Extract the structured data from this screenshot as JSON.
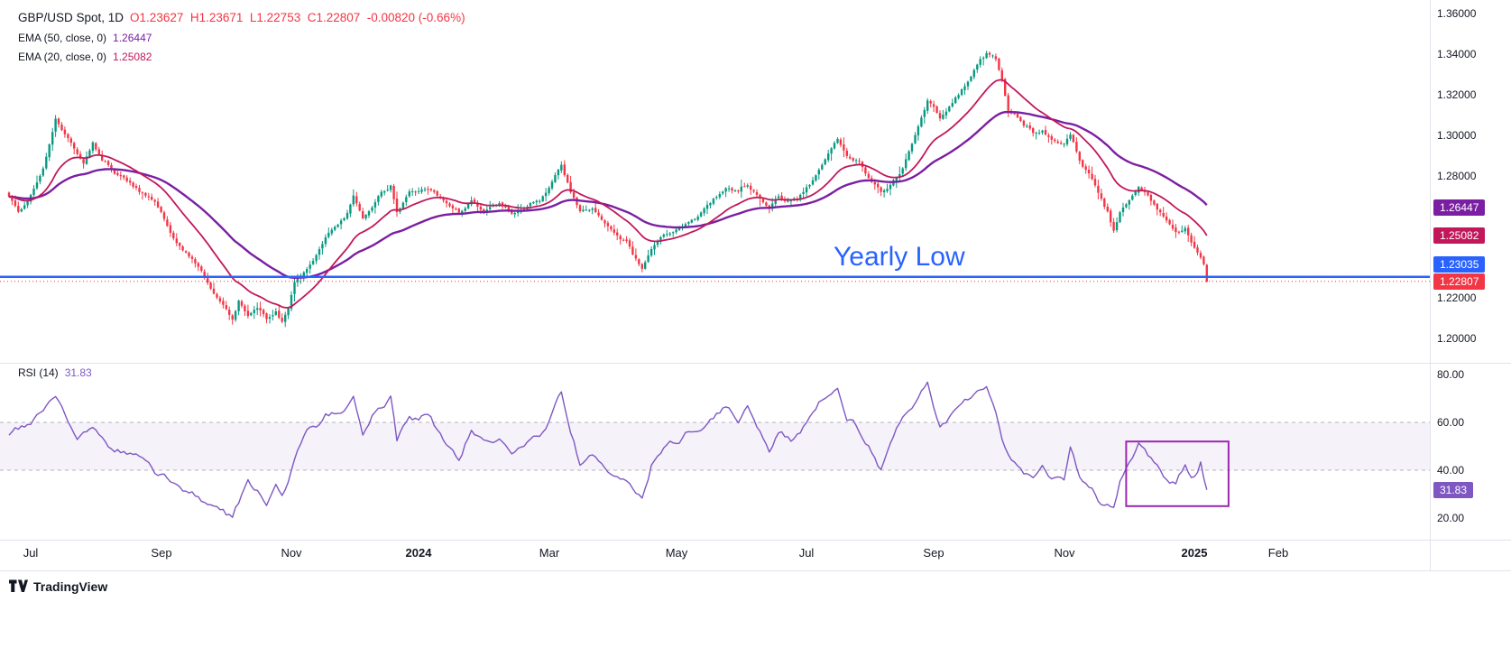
{
  "legend": {
    "symbol": "GBP/USD Spot, 1D",
    "ohlc": "O1.23627  H1.23671  L1.22753  C1.22807  -0.00820 (-0.66%)",
    "ohlc_color": "#f23645",
    "ema50_label": "EMA (50, close, 0)",
    "ema50_value": "1.26447",
    "ema20_label": "EMA (20, close, 0)",
    "ema20_value": "1.25082",
    "rsi_label": "RSI (14)",
    "rsi_value": "31.83"
  },
  "price_axis": {
    "labels": [
      {
        "label": "1.36000",
        "value": 1.36
      },
      {
        "label": "1.34000",
        "value": 1.34
      },
      {
        "label": "1.32000",
        "value": 1.32
      },
      {
        "label": "1.30000",
        "value": 1.3
      },
      {
        "label": "1.28000",
        "value": 1.28
      },
      {
        "label": "1.26000",
        "value": 1.26
      },
      {
        "label": "1.24000",
        "value": 1.24
      },
      {
        "label": "1.22000",
        "value": 1.22
      },
      {
        "label": "1.20000",
        "value": 1.2
      }
    ],
    "badges": [
      {
        "text": "1.26447",
        "bg": "#7b1fa2",
        "price": 1.26447
      },
      {
        "text": "1.25082",
        "bg": "#c2185b",
        "price": 1.25082
      },
      {
        "text": "1.23035",
        "bg": "#2962ff",
        "price": 1.23035
      },
      {
        "text": "1.22807",
        "bg": "#f23645",
        "price": 1.22807
      }
    ]
  },
  "rsi_axis": {
    "labels": [
      {
        "label": "80.00",
        "value": 80
      },
      {
        "label": "60.00",
        "value": 60
      },
      {
        "label": "40.00",
        "value": 40
      },
      {
        "label": "20.00",
        "value": 20
      }
    ],
    "badge": {
      "text": "31.83",
      "bg": "#7e57c2",
      "value": 31.83
    }
  },
  "time_axis": {
    "ticks": [
      {
        "label": "Jul",
        "d": 7,
        "bold": false
      },
      {
        "label": "Sep",
        "d": 49,
        "bold": false
      },
      {
        "label": "Nov",
        "d": 91,
        "bold": false
      },
      {
        "label": "2024",
        "d": 132,
        "bold": true
      },
      {
        "label": "Mar",
        "d": 174,
        "bold": false
      },
      {
        "label": "May",
        "d": 215,
        "bold": false
      },
      {
        "label": "Jul",
        "d": 257,
        "bold": false
      },
      {
        "label": "Sep",
        "d": 298,
        "bold": false
      },
      {
        "label": "Nov",
        "d": 340,
        "bold": false
      },
      {
        "label": "2025",
        "d": 382,
        "bold": true
      },
      {
        "label": "Feb",
        "d": 409,
        "bold": false
      }
    ]
  },
  "footer": {
    "logo_text": "TradingView"
  },
  "chart_data": {
    "type": "candlestick",
    "title": "GBP/USD Spot, 1D",
    "timeframe": "1D",
    "n_days": 387,
    "price_ylim": [
      1.195,
      1.365
    ],
    "up_color": "#089981",
    "down_color": "#f23645",
    "last_candle": {
      "open": 1.23627,
      "high": 1.23671,
      "low": 1.22753,
      "close": 1.22807
    },
    "change": "-0.00820 (-0.66%)",
    "ema": [
      {
        "period": 50,
        "color": "#7b1fa2",
        "last_value": 1.26447
      },
      {
        "period": 20,
        "color": "#c2185b",
        "last_value": 1.25082
      }
    ],
    "yearly_low_line": {
      "price": 1.23035,
      "color": "#2962ff",
      "label": "Yearly Low"
    },
    "last_price_line": {
      "price": 1.22807,
      "color": "#f23645"
    },
    "close_anchors": [
      [
        0,
        1.27
      ],
      [
        3,
        1.2625
      ],
      [
        6,
        1.268
      ],
      [
        11,
        1.283
      ],
      [
        15,
        1.308
      ],
      [
        19,
        1.298
      ],
      [
        22,
        1.29
      ],
      [
        24,
        1.286
      ],
      [
        27,
        1.2975
      ],
      [
        30,
        1.288
      ],
      [
        34,
        1.282
      ],
      [
        39,
        1.276
      ],
      [
        43,
        1.272
      ],
      [
        47,
        1.2675
      ],
      [
        49,
        1.262
      ],
      [
        52,
        1.252
      ],
      [
        55,
        1.2465
      ],
      [
        58,
        1.24
      ],
      [
        62,
        1.232
      ],
      [
        66,
        1.222
      ],
      [
        70,
        1.215
      ],
      [
        72,
        1.21
      ],
      [
        74,
        1.218
      ],
      [
        77,
        1.212
      ],
      [
        80,
        1.2155
      ],
      [
        83,
        1.21
      ],
      [
        86,
        1.2125
      ],
      [
        88,
        1.2085
      ],
      [
        90,
        1.215
      ],
      [
        92,
        1.228
      ],
      [
        95,
        1.232
      ],
      [
        98,
        1.238
      ],
      [
        102,
        1.25
      ],
      [
        106,
        1.256
      ],
      [
        109,
        1.262
      ],
      [
        111,
        1.27
      ],
      [
        114,
        1.258
      ],
      [
        117,
        1.266
      ],
      [
        120,
        1.272
      ],
      [
        123,
        1.276
      ],
      [
        125,
        1.2625
      ],
      [
        129,
        1.272
      ],
      [
        132,
        1.272
      ],
      [
        136,
        1.274
      ],
      [
        140,
        1.268
      ],
      [
        145,
        1.262
      ],
      [
        149,
        1.268
      ],
      [
        153,
        1.263
      ],
      [
        158,
        1.267
      ],
      [
        162,
        1.262
      ],
      [
        167,
        1.265
      ],
      [
        171,
        1.268
      ],
      [
        175,
        1.278
      ],
      [
        178,
        1.285
      ],
      [
        181,
        1.273
      ],
      [
        184,
        1.262
      ],
      [
        188,
        1.264
      ],
      [
        191,
        1.258
      ],
      [
        195,
        1.252
      ],
      [
        199,
        1.248
      ],
      [
        201,
        1.24
      ],
      [
        204,
        1.234
      ],
      [
        207,
        1.245
      ],
      [
        211,
        1.25
      ],
      [
        215,
        1.252
      ],
      [
        219,
        1.257
      ],
      [
        223,
        1.262
      ],
      [
        228,
        1.27
      ],
      [
        231,
        1.275
      ],
      [
        235,
        1.272
      ],
      [
        238,
        1.276
      ],
      [
        242,
        1.27
      ],
      [
        245,
        1.264
      ],
      [
        248,
        1.27
      ],
      [
        252,
        1.268
      ],
      [
        256,
        1.272
      ],
      [
        260,
        1.28
      ],
      [
        263,
        1.288
      ],
      [
        267,
        1.298
      ],
      [
        270,
        1.29
      ],
      [
        274,
        1.286
      ],
      [
        278,
        1.278
      ],
      [
        281,
        1.272
      ],
      [
        284,
        1.275
      ],
      [
        287,
        1.282
      ],
      [
        291,
        1.295
      ],
      [
        294,
        1.31
      ],
      [
        296,
        1.318
      ],
      [
        298,
        1.314
      ],
      [
        300,
        1.308
      ],
      [
        303,
        1.315
      ],
      [
        306,
        1.32
      ],
      [
        310,
        1.33
      ],
      [
        313,
        1.338
      ],
      [
        315,
        1.341
      ],
      [
        318,
        1.337
      ],
      [
        320,
        1.328
      ],
      [
        322,
        1.312
      ],
      [
        325,
        1.309
      ],
      [
        327,
        1.304
      ],
      [
        330,
        1.301
      ],
      [
        333,
        1.304
      ],
      [
        336,
        1.298
      ],
      [
        340,
        1.296
      ],
      [
        342,
        1.3
      ],
      [
        345,
        1.288
      ],
      [
        348,
        1.28
      ],
      [
        351,
        1.271
      ],
      [
        354,
        1.262
      ],
      [
        356,
        1.253
      ],
      [
        358,
        1.262
      ],
      [
        361,
        1.268
      ],
      [
        364,
        1.275
      ],
      [
        367,
        1.27
      ],
      [
        370,
        1.264
      ],
      [
        373,
        1.258
      ],
      [
        376,
        1.252
      ],
      [
        379,
        1.255
      ],
      [
        381,
        1.248
      ],
      [
        383,
        1.242
      ],
      [
        385,
        1.2365
      ],
      [
        386,
        1.22807
      ]
    ],
    "rsi": {
      "period": 14,
      "color": "#7e57c2",
      "last_value": 31.83,
      "ylim": [
        15,
        85
      ],
      "band": [
        40,
        60
      ],
      "band_fill": "rgba(126,87,194,0.08)",
      "anchors": [
        [
          0,
          55
        ],
        [
          8,
          62
        ],
        [
          15,
          72
        ],
        [
          22,
          52
        ],
        [
          27,
          58
        ],
        [
          34,
          48
        ],
        [
          43,
          45
        ],
        [
          49,
          38
        ],
        [
          55,
          32
        ],
        [
          62,
          28
        ],
        [
          68,
          24
        ],
        [
          72,
          21
        ],
        [
          77,
          35
        ],
        [
          80,
          30
        ],
        [
          83,
          27
        ],
        [
          86,
          33
        ],
        [
          88,
          29
        ],
        [
          92,
          45
        ],
        [
          96,
          55
        ],
        [
          102,
          62
        ],
        [
          106,
          64
        ],
        [
          109,
          67
        ],
        [
          111,
          72
        ],
        [
          114,
          55
        ],
        [
          117,
          62
        ],
        [
          120,
          66
        ],
        [
          123,
          71
        ],
        [
          125,
          52
        ],
        [
          129,
          62
        ],
        [
          132,
          60
        ],
        [
          136,
          62
        ],
        [
          140,
          52
        ],
        [
          145,
          45
        ],
        [
          149,
          56
        ],
        [
          153,
          50
        ],
        [
          158,
          55
        ],
        [
          162,
          47
        ],
        [
          167,
          52
        ],
        [
          171,
          56
        ],
        [
          175,
          64
        ],
        [
          178,
          72
        ],
        [
          181,
          55
        ],
        [
          184,
          42
        ],
        [
          188,
          48
        ],
        [
          191,
          42
        ],
        [
          195,
          38
        ],
        [
          199,
          34
        ],
        [
          202,
          30
        ],
        [
          204,
          28
        ],
        [
          207,
          42
        ],
        [
          211,
          48
        ],
        [
          215,
          52
        ],
        [
          219,
          55
        ],
        [
          223,
          58
        ],
        [
          228,
          64
        ],
        [
          231,
          67
        ],
        [
          235,
          61
        ],
        [
          238,
          66
        ],
        [
          242,
          57
        ],
        [
          245,
          49
        ],
        [
          248,
          57
        ],
        [
          252,
          53
        ],
        [
          256,
          58
        ],
        [
          260,
          65
        ],
        [
          263,
          70
        ],
        [
          267,
          75
        ],
        [
          270,
          61
        ],
        [
          274,
          57
        ],
        [
          278,
          47
        ],
        [
          281,
          40
        ],
        [
          284,
          52
        ],
        [
          287,
          58
        ],
        [
          291,
          66
        ],
        [
          294,
          72
        ],
        [
          296,
          75
        ],
        [
          298,
          67
        ],
        [
          300,
          59
        ],
        [
          303,
          63
        ],
        [
          306,
          67
        ],
        [
          310,
          71
        ],
        [
          313,
          73
        ],
        [
          315,
          75
        ],
        [
          318,
          63
        ],
        [
          320,
          51
        ],
        [
          322,
          45
        ],
        [
          325,
          42
        ],
        [
          327,
          38
        ],
        [
          330,
          36
        ],
        [
          333,
          42
        ],
        [
          336,
          38
        ],
        [
          340,
          37
        ],
        [
          342,
          49
        ],
        [
          345,
          38
        ],
        [
          348,
          33
        ],
        [
          351,
          28
        ],
        [
          354,
          24
        ],
        [
          356,
          23
        ],
        [
          358,
          35
        ],
        [
          361,
          42
        ],
        [
          364,
          52
        ],
        [
          367,
          46
        ],
        [
          370,
          40
        ],
        [
          373,
          36
        ],
        [
          376,
          33
        ],
        [
          379,
          43
        ],
        [
          381,
          38
        ],
        [
          383,
          40
        ],
        [
          384,
          44
        ],
        [
          386,
          31.83
        ]
      ],
      "box": {
        "d_start": 360,
        "d_end": 393,
        "rsi_top": 52,
        "rsi_bottom": 25,
        "color": "#9c27b0"
      }
    }
  }
}
